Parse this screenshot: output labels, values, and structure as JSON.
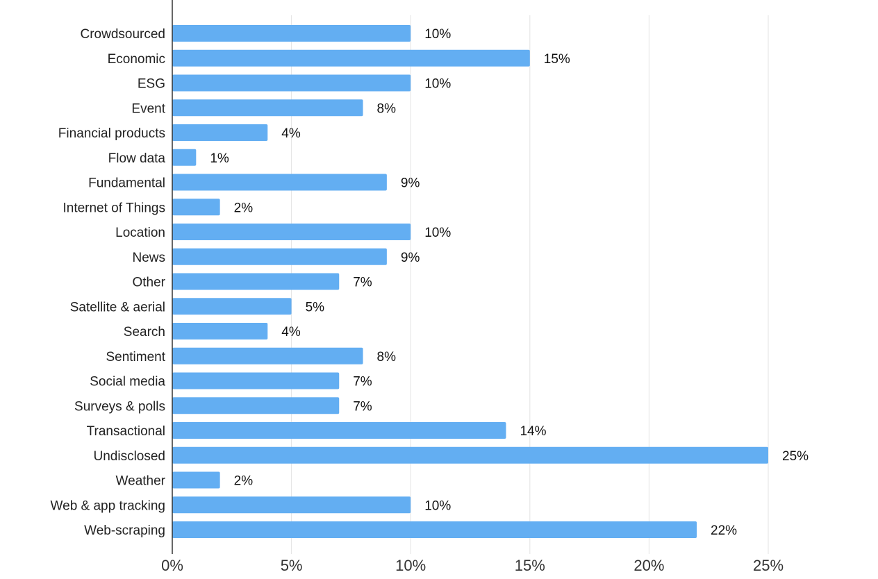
{
  "chart_data": {
    "type": "bar",
    "orientation": "horizontal",
    "title": "",
    "xlabel": "",
    "ylabel": "",
    "xlim": [
      0,
      25
    ],
    "grid": true,
    "legend": "none",
    "bar_color": "#63aef2",
    "x_tick_values": [
      0,
      5,
      10,
      15,
      20,
      25
    ],
    "x_tick_labels": [
      "0%",
      "5%",
      "10%",
      "15%",
      "20%",
      "25%"
    ],
    "categories": [
      "Crowdsourced",
      "Economic",
      "ESG",
      "Event",
      "Financial products",
      "Flow data",
      "Fundamental",
      "Internet of Things",
      "Location",
      "News",
      "Other",
      "Satellite & aerial",
      "Search",
      "Sentiment",
      "Social media",
      "Surveys & polls",
      "Transactional",
      "Undisclosed",
      "Weather",
      "Web & app tracking",
      "Web-scraping"
    ],
    "values": [
      10,
      15,
      10,
      8,
      4,
      1,
      9,
      2,
      10,
      9,
      7,
      5,
      4,
      8,
      7,
      7,
      14,
      25,
      2,
      10,
      22
    ],
    "value_labels": [
      "10%",
      "15%",
      "10%",
      "8%",
      "4%",
      "1%",
      "9%",
      "2%",
      "10%",
      "9%",
      "7%",
      "5%",
      "4%",
      "8%",
      "7%",
      "7%",
      "14%",
      "25%",
      "2%",
      "10%",
      "22%"
    ]
  }
}
